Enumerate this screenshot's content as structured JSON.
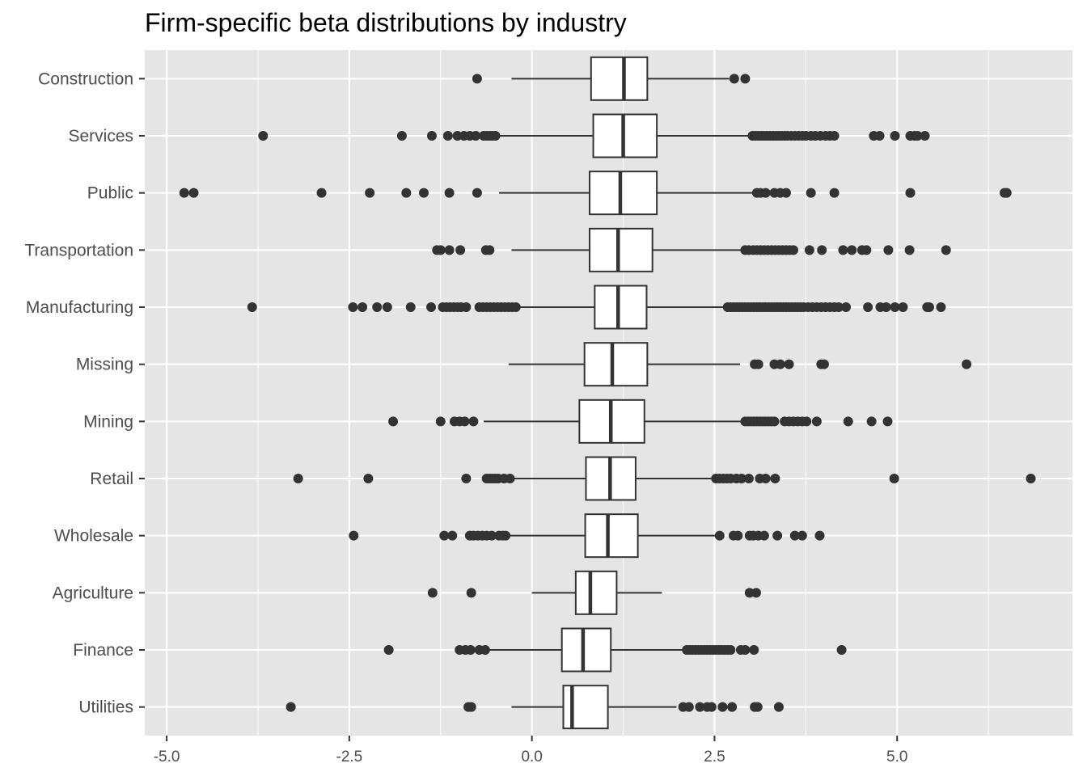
{
  "chart_data": {
    "type": "boxplot",
    "orientation": "horizontal",
    "title": "Firm-specific beta distributions by industry",
    "xlabel": "",
    "ylabel": "",
    "xlim": [
      -5.3,
      7.4
    ],
    "x_ticks": [
      -5.0,
      -2.5,
      0.0,
      2.5,
      5.0
    ],
    "x_tick_labels": [
      "-5.0",
      "-2.5",
      "0.0",
      "2.5",
      "5.0"
    ],
    "grid": true,
    "legend": "none",
    "colors": {
      "panel": "#e5e5e5",
      "grid": "#ffffff",
      "box_fill": "#ffffff",
      "box_stroke": "#333333",
      "outlier": "#333333",
      "tick_text": "#4d4d4d"
    },
    "categories": [
      "Construction",
      "Services",
      "Public",
      "Transportation",
      "Manufacturing",
      "Missing",
      "Mining",
      "Retail",
      "Wholesale",
      "Agriculture",
      "Finance",
      "Utilities"
    ],
    "boxes": [
      {
        "industry": "Construction",
        "whisker_low": -0.28,
        "q1": 0.81,
        "median": 1.26,
        "q3": 1.58,
        "whisker_high": 2.7,
        "outliers": [
          -0.75,
          2.77,
          2.92
        ]
      },
      {
        "industry": "Services",
        "whisker_low": -0.45,
        "q1": 0.84,
        "median": 1.25,
        "q3": 1.71,
        "whisker_high": 3.0,
        "outliers": [
          -3.68,
          -1.78,
          -1.37,
          -1.15,
          -1.02,
          -0.93,
          -0.85,
          -0.77,
          -0.66,
          -0.62,
          -0.58,
          -0.54,
          -0.5,
          3.02,
          3.06,
          3.1,
          3.14,
          3.18,
          3.22,
          3.26,
          3.3,
          3.34,
          3.38,
          3.42,
          3.46,
          3.5,
          3.55,
          3.6,
          3.65,
          3.7,
          3.75,
          3.82,
          3.88,
          3.95,
          4.02,
          4.08,
          4.14,
          4.68,
          4.76,
          4.97,
          5.18,
          5.24,
          5.28,
          5.38
        ]
      },
      {
        "industry": "Public",
        "whisker_low": -0.45,
        "q1": 0.79,
        "median": 1.21,
        "q3": 1.71,
        "whisker_high": 3.05,
        "outliers": [
          -4.76,
          -4.63,
          -2.88,
          -2.22,
          -1.72,
          -1.48,
          -1.13,
          -0.75,
          3.08,
          3.13,
          3.2,
          3.32,
          3.4,
          3.48,
          3.82,
          4.14,
          5.18,
          6.47,
          6.5
        ]
      },
      {
        "industry": "Transportation",
        "whisker_low": -0.28,
        "q1": 0.79,
        "median": 1.18,
        "q3": 1.65,
        "whisker_high": 2.9,
        "outliers": [
          -1.3,
          -1.25,
          -1.13,
          -0.98,
          -0.63,
          -0.58,
          2.92,
          2.97,
          3.03,
          3.08,
          3.13,
          3.18,
          3.23,
          3.28,
          3.33,
          3.38,
          3.43,
          3.48,
          3.53,
          3.58,
          3.8,
          3.97,
          4.26,
          4.38,
          4.52,
          4.58,
          4.88,
          5.17,
          5.67
        ]
      },
      {
        "industry": "Manufacturing",
        "whisker_low": -0.22,
        "q1": 0.86,
        "median": 1.18,
        "q3": 1.57,
        "whisker_high": 2.65,
        "outliers": [
          -3.83,
          -2.45,
          -2.32,
          -2.12,
          -1.98,
          -1.66,
          -1.38,
          -1.22,
          -1.17,
          -1.12,
          -1.07,
          -1.02,
          -0.97,
          -0.9,
          -0.72,
          -0.67,
          -0.62,
          -0.57,
          -0.52,
          -0.47,
          -0.42,
          -0.37,
          -0.32,
          -0.27,
          -0.22,
          2.68,
          2.72,
          2.76,
          2.8,
          2.84,
          2.88,
          2.92,
          2.96,
          3.0,
          3.04,
          3.08,
          3.12,
          3.16,
          3.2,
          3.24,
          3.28,
          3.32,
          3.36,
          3.4,
          3.44,
          3.48,
          3.52,
          3.56,
          3.6,
          3.64,
          3.68,
          3.72,
          3.78,
          3.84,
          3.9,
          3.96,
          4.02,
          4.08,
          4.14,
          4.2,
          4.3,
          4.6,
          4.77,
          4.85,
          4.97,
          5.08,
          5.41,
          5.44,
          5.6
        ]
      },
      {
        "industry": "Missing",
        "whisker_low": -0.32,
        "q1": 0.72,
        "median": 1.1,
        "q3": 1.58,
        "whisker_high": 2.85,
        "outliers": [
          3.05,
          3.1,
          3.32,
          3.4,
          3.52,
          3.96,
          4.0,
          5.95
        ]
      },
      {
        "industry": "Mining",
        "whisker_low": -0.66,
        "q1": 0.65,
        "median": 1.08,
        "q3": 1.54,
        "whisker_high": 2.88,
        "outliers": [
          -1.9,
          -1.25,
          -1.06,
          -0.99,
          -0.92,
          -0.8,
          2.92,
          2.96,
          3.0,
          3.04,
          3.08,
          3.12,
          3.16,
          3.2,
          3.24,
          3.28,
          3.32,
          3.46,
          3.52,
          3.58,
          3.64,
          3.7,
          3.76,
          3.9,
          4.33,
          4.65,
          4.87
        ]
      },
      {
        "industry": "Retail",
        "whisker_low": -0.28,
        "q1": 0.74,
        "median": 1.07,
        "q3": 1.42,
        "whisker_high": 2.48,
        "outliers": [
          -3.2,
          -2.24,
          -0.9,
          -0.62,
          -0.58,
          -0.54,
          -0.5,
          -0.46,
          -0.38,
          -0.3,
          2.52,
          2.57,
          2.62,
          2.67,
          2.72,
          2.8,
          2.87,
          2.97,
          3.12,
          3.2,
          3.33,
          4.96,
          6.83
        ]
      },
      {
        "industry": "Wholesale",
        "whisker_low": -0.3,
        "q1": 0.73,
        "median": 1.04,
        "q3": 1.45,
        "whisker_high": 2.55,
        "outliers": [
          -2.44,
          -1.2,
          -1.09,
          -0.85,
          -0.8,
          -0.74,
          -0.68,
          -0.62,
          -0.55,
          -0.45,
          -0.4,
          -0.36,
          2.57,
          2.76,
          2.82,
          2.98,
          3.03,
          3.1,
          3.18,
          3.36,
          3.6,
          3.7,
          3.94
        ]
      },
      {
        "industry": "Agriculture",
        "whisker_low": 0.0,
        "q1": 0.6,
        "median": 0.8,
        "q3": 1.16,
        "whisker_high": 1.78,
        "outliers": [
          -1.36,
          -0.83,
          2.98,
          3.07
        ]
      },
      {
        "industry": "Finance",
        "whisker_low": -0.6,
        "q1": 0.41,
        "median": 0.7,
        "q3": 1.08,
        "whisker_high": 2.1,
        "outliers": [
          -1.96,
          -0.99,
          -0.91,
          -0.84,
          -0.72,
          -0.64,
          2.12,
          2.16,
          2.2,
          2.24,
          2.28,
          2.32,
          2.36,
          2.4,
          2.44,
          2.48,
          2.52,
          2.56,
          2.6,
          2.64,
          2.68,
          2.72,
          2.86,
          2.92,
          3.04,
          4.24
        ]
      },
      {
        "industry": "Utilities",
        "whisker_low": -0.28,
        "q1": 0.43,
        "median": 0.55,
        "q3": 1.04,
        "whisker_high": 1.98,
        "outliers": [
          -3.3,
          -0.87,
          -0.83,
          2.07,
          2.15,
          2.3,
          2.4,
          2.46,
          2.61,
          2.74,
          3.05,
          3.09,
          3.38
        ]
      }
    ]
  }
}
